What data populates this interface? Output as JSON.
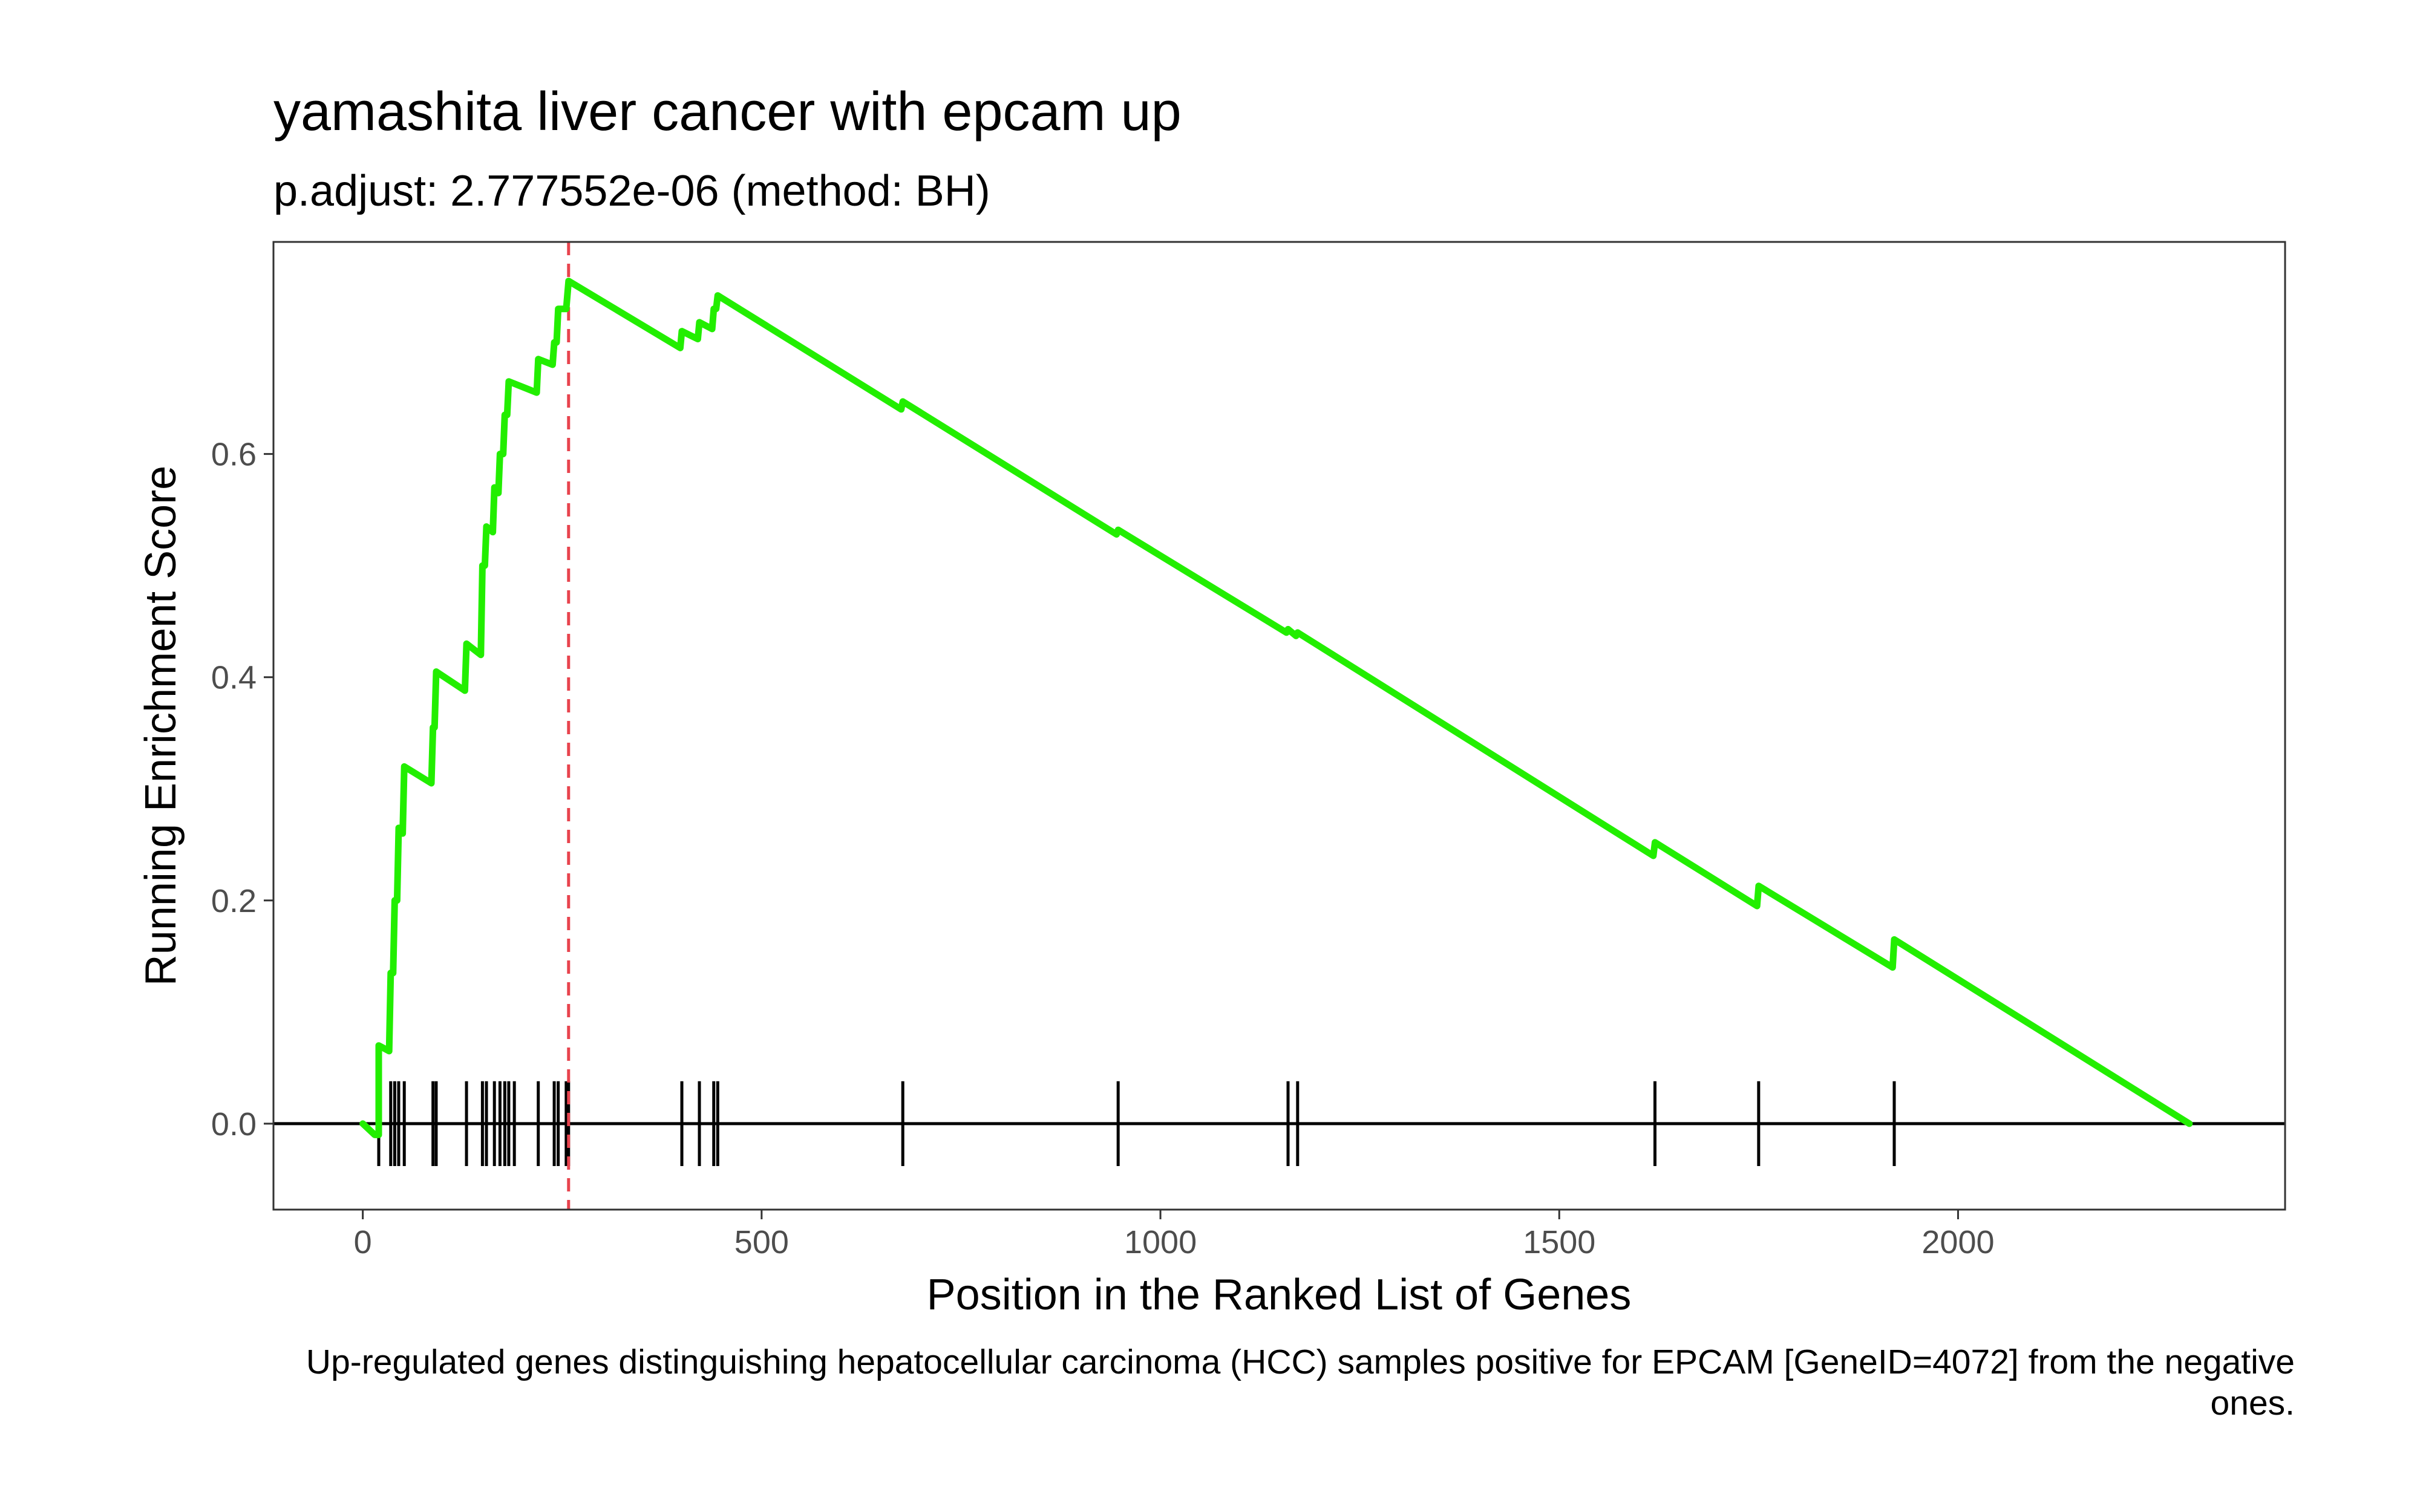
{
  "chart_data": {
    "type": "line",
    "title": "yamashita liver cancer with epcam up",
    "subtitle": "p.adjust: 2.777552e-06 (method: BH)",
    "caption": "Up-regulated genes distinguishing hepatocellular carcinoma (HCC) samples positive for EPCAM [GeneID=4072] from the negative ones.",
    "xlabel": "Position in the Ranked List of Genes",
    "ylabel": "Running Enrichment Score",
    "xlim": [
      -112,
      2410
    ],
    "ylim": [
      -0.077,
      0.79
    ],
    "x_ticks": [
      0,
      500,
      1000,
      1500,
      2000
    ],
    "y_ticks": [
      0.0,
      0.2,
      0.4,
      0.6
    ],
    "grid": false,
    "legend": "none",
    "colors": {
      "curve": "#22ee00",
      "peak_line": "#e8434d",
      "hits": "#000000",
      "zero_line": "#000000"
    },
    "max_es_position": 258,
    "hit_positions": [
      20,
      35,
      40,
      45,
      52,
      88,
      92,
      130,
      150,
      155,
      165,
      172,
      178,
      183,
      190,
      220,
      240,
      245,
      255,
      258,
      400,
      422,
      440,
      445,
      677,
      947,
      1160,
      1172,
      1620,
      1750,
      1920
    ],
    "series": [
      {
        "values": [
          [
            0,
            0.0
          ],
          [
            15,
            -0.01
          ],
          [
            20,
            -0.01
          ],
          [
            20,
            0.07
          ],
          [
            33,
            0.065
          ],
          [
            35,
            0.135
          ],
          [
            38,
            0.135
          ],
          [
            40,
            0.2
          ],
          [
            43,
            0.2
          ],
          [
            45,
            0.265
          ],
          [
            50,
            0.26
          ],
          [
            52,
            0.32
          ],
          [
            86,
            0.305
          ],
          [
            88,
            0.355
          ],
          [
            90,
            0.355
          ],
          [
            92,
            0.405
          ],
          [
            128,
            0.388
          ],
          [
            130,
            0.43
          ],
          [
            148,
            0.42
          ],
          [
            150,
            0.5
          ],
          [
            153,
            0.5
          ],
          [
            155,
            0.535
          ],
          [
            163,
            0.53
          ],
          [
            165,
            0.57
          ],
          [
            170,
            0.565
          ],
          [
            172,
            0.6
          ],
          [
            176,
            0.6
          ],
          [
            178,
            0.635
          ],
          [
            181,
            0.635
          ],
          [
            183,
            0.665
          ],
          [
            218,
            0.655
          ],
          [
            220,
            0.685
          ],
          [
            238,
            0.68
          ],
          [
            240,
            0.7
          ],
          [
            243,
            0.7
          ],
          [
            245,
            0.73
          ],
          [
            255,
            0.73
          ],
          [
            258,
            0.755
          ],
          [
            398,
            0.695
          ],
          [
            400,
            0.71
          ],
          [
            420,
            0.703
          ],
          [
            422,
            0.718
          ],
          [
            438,
            0.712
          ],
          [
            440,
            0.73
          ],
          [
            443,
            0.73
          ],
          [
            445,
            0.742
          ],
          [
            675,
            0.64
          ],
          [
            677,
            0.647
          ],
          [
            945,
            0.528
          ],
          [
            947,
            0.532
          ],
          [
            1158,
            0.44
          ],
          [
            1160,
            0.443
          ],
          [
            1170,
            0.437
          ],
          [
            1172,
            0.44
          ],
          [
            1618,
            0.24
          ],
          [
            1620,
            0.252
          ],
          [
            1748,
            0.195
          ],
          [
            1750,
            0.213
          ],
          [
            1918,
            0.14
          ],
          [
            1920,
            0.165
          ],
          [
            2290,
            0.0
          ]
        ]
      }
    ]
  }
}
